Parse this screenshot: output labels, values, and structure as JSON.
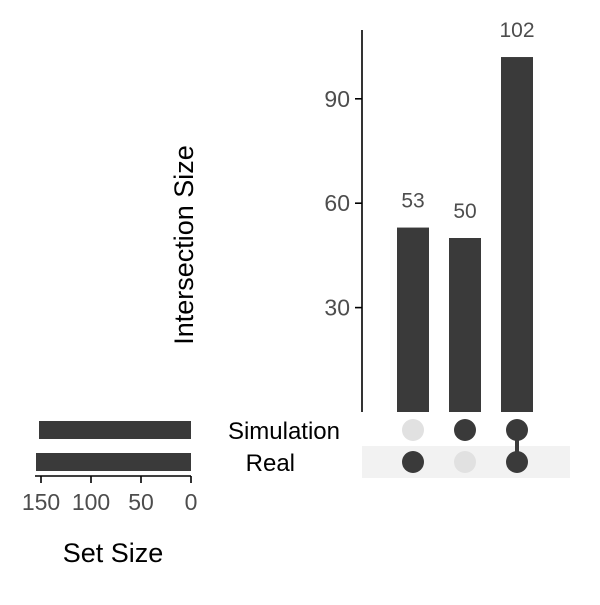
{
  "chart_data": {
    "type": "upset",
    "intersection_axis_label": "Intersection Size",
    "set_size_axis_label": "Set Size",
    "sets": [
      {
        "name": "Simulation",
        "size": 152
      },
      {
        "name": "Real",
        "size": 155
      }
    ],
    "intersections": [
      {
        "members": [
          "Real"
        ],
        "size": 53,
        "label": "53"
      },
      {
        "members": [
          "Simulation"
        ],
        "size": 50,
        "label": "50"
      },
      {
        "members": [
          "Simulation",
          "Real"
        ],
        "size": 102,
        "label": "102"
      }
    ],
    "intersection_ylim": [
      0,
      115
    ],
    "intersection_ticks": [
      "30",
      "60",
      "90"
    ],
    "set_size_xlim": [
      0,
      160
    ],
    "set_size_ticks": [
      "150",
      "100",
      "50",
      "0"
    ],
    "colors": {
      "bar": "#3a3a3a",
      "dot_active": "#3a3a3a",
      "dot_inactive": "#e1e1e1",
      "stripe": "#f2f2f2",
      "axis": "#000000",
      "tick_text": "#4d4d4d"
    }
  }
}
